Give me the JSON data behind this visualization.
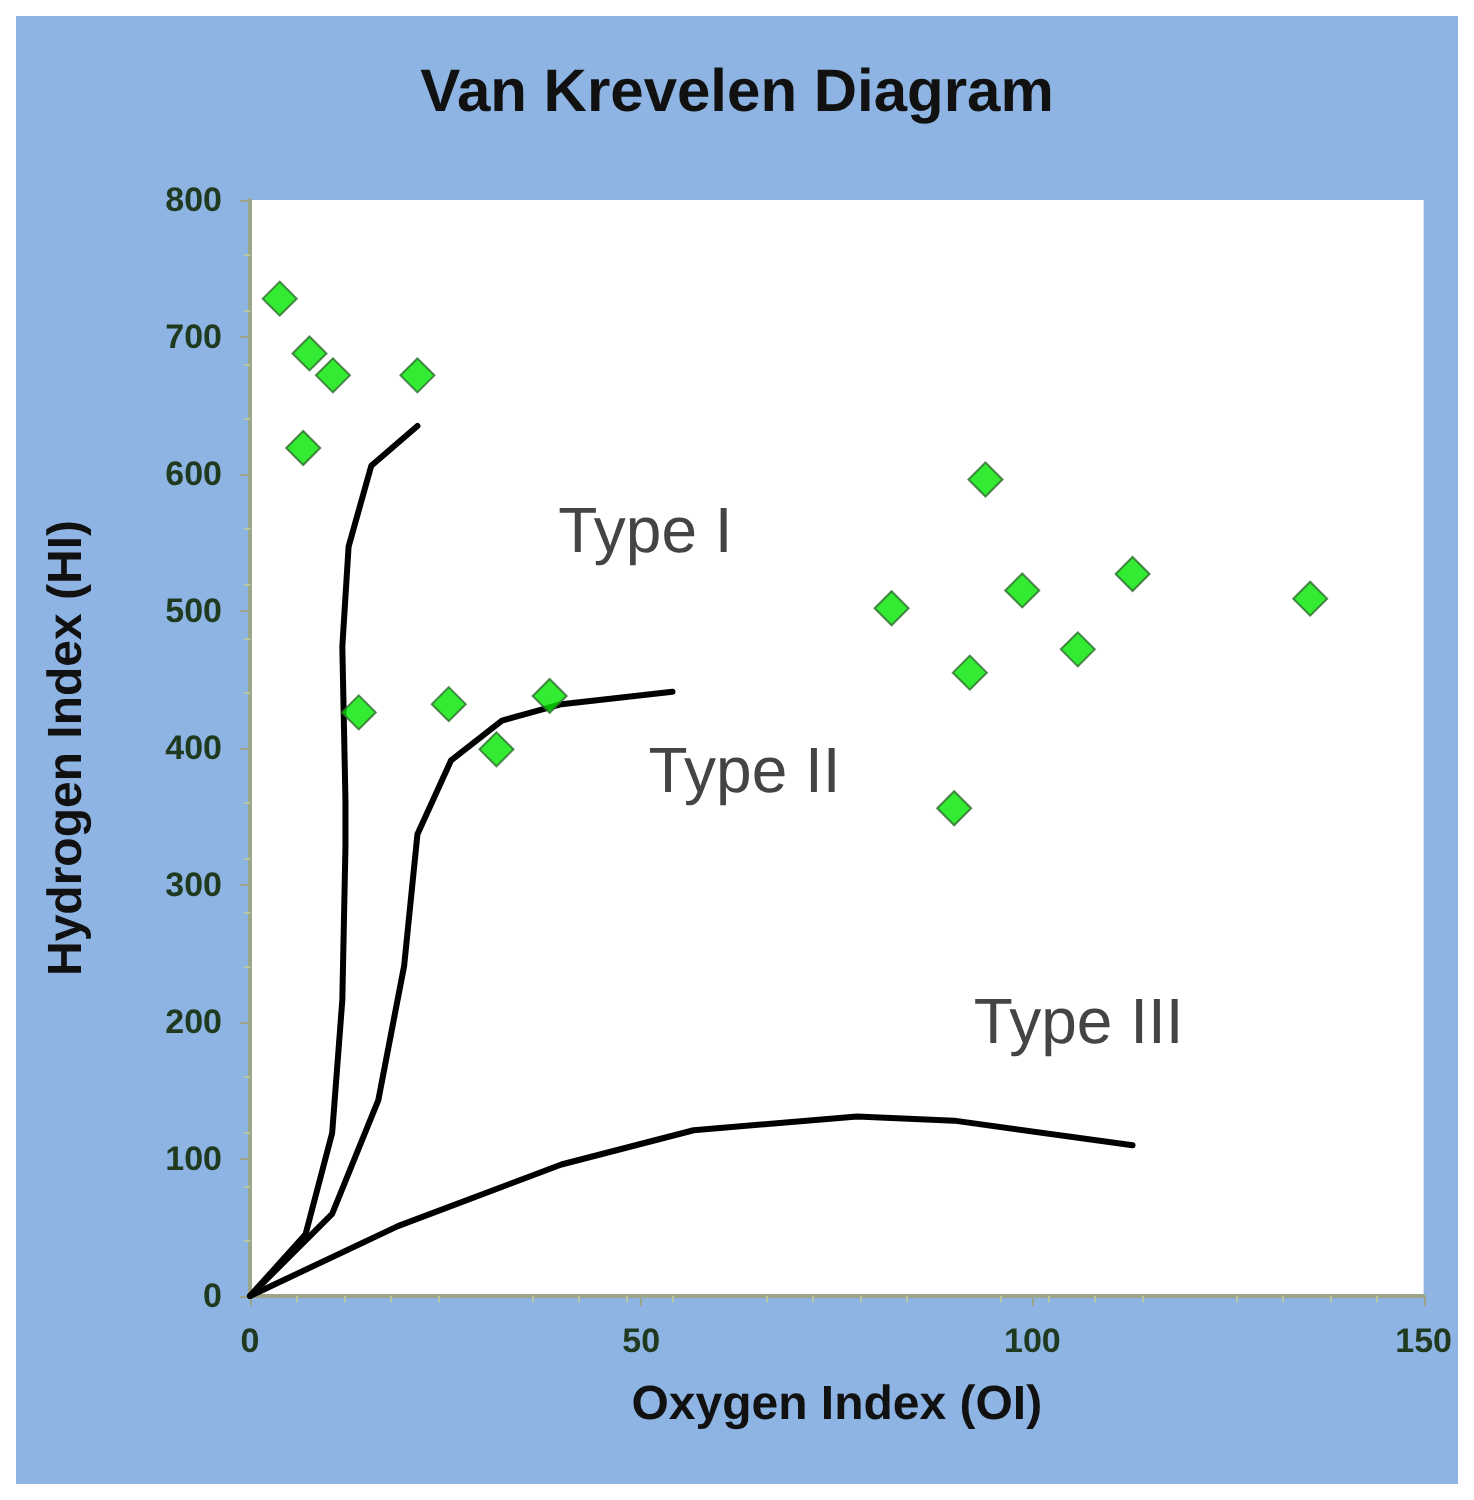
{
  "chart_data": {
    "type": "scatter",
    "title": "Van Krevelen Diagram",
    "xlabel": "Oxygen Index (OI)",
    "ylabel": "Hydrogen Index (HI)",
    "xlim": [
      0,
      150
    ],
    "xticks": [
      0,
      50,
      100,
      150
    ],
    "ylim": [
      0,
      800
    ],
    "yticks": [
      0,
      100,
      200,
      300,
      400,
      500,
      600,
      700,
      800
    ],
    "grid": false,
    "legend": false,
    "series": [
      {
        "type": "scatter",
        "marker": "diamond",
        "color": "#00e600",
        "x": [
          3.8,
          7.6,
          10.6,
          21.4,
          6.8,
          13.9,
          25.4,
          31.5,
          38.3,
          82,
          94,
          92,
          98.7,
          105.8,
          112.8,
          135.5,
          90
        ],
        "values": [
          728,
          688,
          672,
          672,
          619,
          426,
          432,
          399,
          438,
          502,
          596,
          455,
          515,
          472,
          527,
          509,
          356
        ]
      },
      {
        "type": "line",
        "name": "Type I",
        "marker": "none",
        "line_style": "solid",
        "color": "#000000",
        "x": [
          0,
          7.1,
          10.5,
          11.8,
          12.2,
          12.2,
          11.8,
          12.6,
          15.5,
          21.4
        ],
        "values": [
          0,
          45,
          119,
          216,
          328,
          362,
          474,
          547,
          606,
          635
        ]
      },
      {
        "type": "line",
        "name": "Type II",
        "marker": "none",
        "line_style": "solid",
        "color": "#000000",
        "x": [
          0,
          10.5,
          16.4,
          19.7,
          21.4,
          25.7,
          32.2,
          39.8,
          54
        ],
        "values": [
          0,
          60,
          143,
          241,
          337,
          391,
          420,
          432,
          441
        ]
      },
      {
        "type": "line",
        "name": "Type III",
        "marker": "none",
        "line_style": "solid",
        "color": "#000000",
        "x": [
          0,
          18.9,
          39.8,
          56.7,
          77.6,
          90,
          112.8
        ],
        "values": [
          0,
          51,
          96,
          121,
          131,
          128,
          110
        ]
      }
    ]
  }
}
